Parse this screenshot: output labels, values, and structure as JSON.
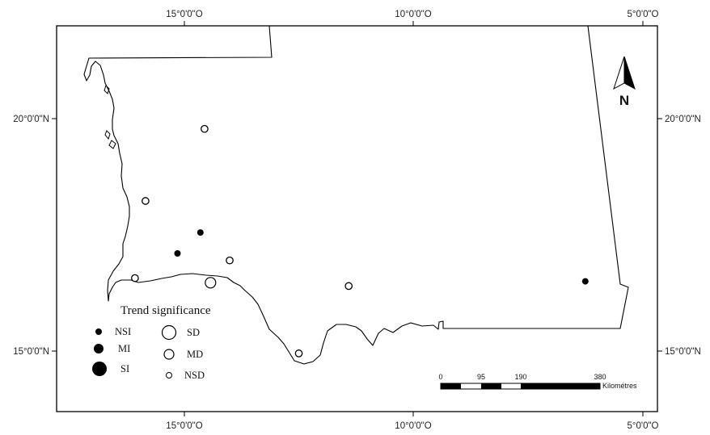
{
  "graticule": {
    "top": [
      "15°0'0\"O",
      "10°0'0\"O",
      "5°0'0\"O"
    ],
    "bottom": [
      "15°0'0\"O",
      "10°0'0\"O",
      "5°0'0\"O"
    ],
    "left": [
      "20°0'0\"N",
      "15°0'0\"N"
    ],
    "right": [
      "20°0'0\"N",
      "15°0'0\"N"
    ]
  },
  "north_arrow": {
    "label": "N"
  },
  "legend": {
    "title": "Trend significance",
    "items": [
      {
        "code": "NSI",
        "style": "filled",
        "size": "small"
      },
      {
        "code": "MI",
        "style": "filled",
        "size": "medium"
      },
      {
        "code": "SI",
        "style": "filled",
        "size": "large"
      },
      {
        "code": "SD",
        "style": "open",
        "size": "large"
      },
      {
        "code": "MD",
        "style": "open",
        "size": "medium"
      },
      {
        "code": "NSD",
        "style": "open",
        "size": "small"
      }
    ]
  },
  "stations": [
    {
      "lon": -14.56,
      "lat": 19.78,
      "class": "MD"
    },
    {
      "lon": -15.85,
      "lat": 18.23,
      "class": "MD"
    },
    {
      "lon": -14.65,
      "lat": 17.55,
      "class": "NSI"
    },
    {
      "lon": -15.15,
      "lat": 17.1,
      "class": "NSI"
    },
    {
      "lon": -14.01,
      "lat": 16.95,
      "class": "MD"
    },
    {
      "lon": -16.08,
      "lat": 16.57,
      "class": "MD"
    },
    {
      "lon": -14.43,
      "lat": 16.47,
      "class": "SD"
    },
    {
      "lon": -11.41,
      "lat": 16.4,
      "class": "MD"
    },
    {
      "lon": -6.24,
      "lat": 16.5,
      "class": "NSI"
    },
    {
      "lon": -12.5,
      "lat": 14.95,
      "class": "MD"
    }
  ],
  "scale_bar": {
    "ticks": [
      "0",
      "95",
      "190",
      "380"
    ],
    "unit": "Kilométres"
  }
}
